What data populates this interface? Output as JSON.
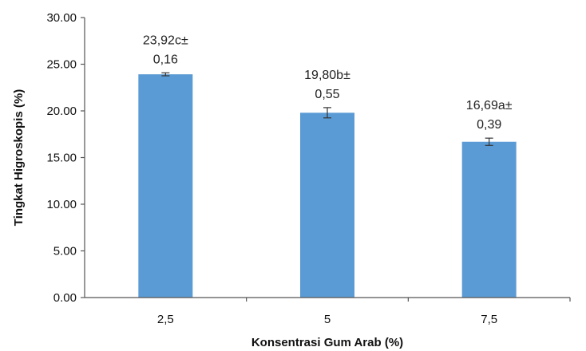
{
  "chart_data": {
    "type": "bar",
    "categories": [
      "2,5",
      "5",
      "7,5"
    ],
    "values": [
      23.92,
      19.8,
      16.69
    ],
    "errors": [
      0.16,
      0.55,
      0.39
    ],
    "data_labels": [
      [
        "23,92c±",
        "0,16"
      ],
      [
        "19,80b±",
        "0,55"
      ],
      [
        "16,69a±",
        "0,39"
      ]
    ],
    "y_ticks": [
      "0.00",
      "5.00",
      "10.00",
      "15.00",
      "20.00",
      "25.00",
      "30.00"
    ],
    "xlabel": "Konsentrasi Gum Arab (%)",
    "ylabel": "Tingkat Higroskopis (%)",
    "ylim": [
      0,
      30
    ],
    "grid": false,
    "bar_color": "#5b9bd5",
    "axis_color": "#555555"
  }
}
